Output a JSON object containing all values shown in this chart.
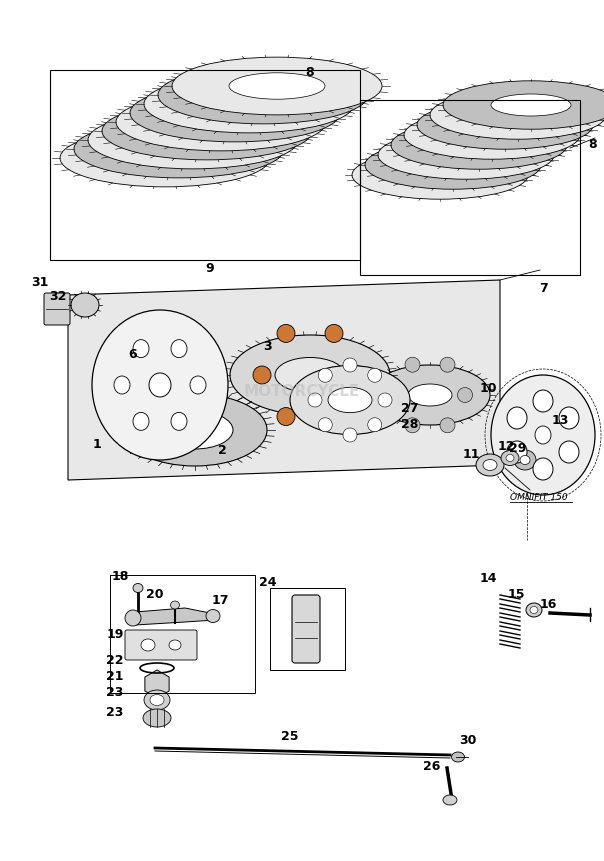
{
  "bg_color": "#ffffff",
  "line_color": "#000000",
  "orange_fill": "#cc7733",
  "watermark_text": "MOTORCYCLE",
  "watermark_color": "#bbbbbb"
}
